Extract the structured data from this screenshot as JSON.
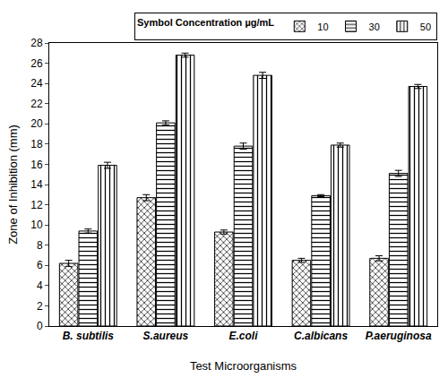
{
  "chart_data": {
    "type": "bar",
    "x_label": "Test Microorganisms",
    "y_label": "Zone of Inhibition (mm)",
    "legend_title": [
      "Symbol",
      "Concentration",
      "µg/mL"
    ],
    "categories": [
      "B. subtilis",
      "S.aureus",
      "E.coli",
      "C.albicans",
      "P.aeruginosa"
    ],
    "series": [
      {
        "name": "10",
        "color": "#000000",
        "marker": "crosshatch",
        "values": [
          6.2,
          12.7,
          9.3,
          6.5,
          6.7
        ],
        "errors": [
          0.3,
          0.3,
          0.2,
          0.2,
          0.25
        ]
      },
      {
        "name": "30",
        "color": "#000000",
        "marker": "horizontal",
        "values": [
          9.4,
          20.1,
          17.8,
          12.9,
          15.1
        ],
        "errors": [
          0.2,
          0.2,
          0.3,
          0.1,
          0.3
        ]
      },
      {
        "name": "50",
        "color": "#000000",
        "marker": "vertical",
        "values": [
          15.9,
          26.8,
          24.8,
          17.9,
          23.7
        ],
        "errors": [
          0.3,
          0.2,
          0.3,
          0.2,
          0.2
        ]
      }
    ],
    "ylim": [
      0,
      28
    ],
    "yticks": [
      0,
      2,
      4,
      6,
      8,
      10,
      12,
      14,
      16,
      18,
      20,
      22,
      24,
      26,
      28
    ],
    "grid": false,
    "legend": "top"
  }
}
